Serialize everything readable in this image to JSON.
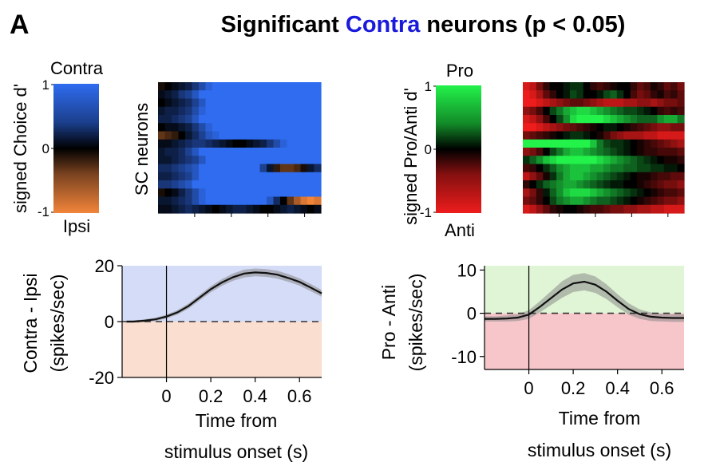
{
  "panel_letter": "A",
  "title": {
    "prefix": "Significant ",
    "highlight": "Contra",
    "suffix": " neurons (p < 0.05)",
    "highlight_color": "#1a1adc"
  },
  "colors": {
    "contra": "#2f6cf0",
    "ipsi": "#f2843a",
    "pro": "#22f24a",
    "anti": "#ee1c1c",
    "contra_fill": "#d4dcf7",
    "ipsi_fill": "#fadfd0",
    "pro_fill": "#dff5d5",
    "anti_fill": "#f7c6ca",
    "mean_line": "#111111",
    "sem_band": "#8a8a8a"
  },
  "chart_data": [
    {
      "type": "heatmap",
      "id": "choice-colorbar",
      "title": "signed Choice d'",
      "top_label": "Contra",
      "bottom_label": "Ipsi",
      "tick_labels": [
        "1",
        "0",
        "-1"
      ],
      "range": [
        -1,
        1
      ],
      "colormap": "blue-black-orange"
    },
    {
      "type": "heatmap",
      "id": "choice-heatmap",
      "ylabel": "SC neurons",
      "description_values": "rows = neurons, columns = time bins; values are signed Choice d' (mostly Contra)",
      "n_rows": 16,
      "n_cols": 24,
      "range": [
        -1,
        1
      ],
      "rows": [
        [
          -0.1,
          0.0,
          0.1,
          0.2,
          0.3,
          0.5,
          0.7,
          0.9,
          1,
          1,
          1,
          1,
          1,
          1,
          1,
          1,
          1,
          1,
          1,
          1,
          1,
          1,
          1,
          1
        ],
        [
          0.1,
          0.2,
          0.3,
          0.5,
          0.6,
          0.8,
          1,
          1,
          1,
          1,
          1,
          1,
          1,
          1,
          1,
          1,
          1,
          1,
          1,
          1,
          1,
          1,
          1,
          1
        ],
        [
          0.0,
          0.1,
          0.2,
          0.3,
          0.4,
          0.6,
          0.8,
          1,
          1,
          1,
          1,
          1,
          1,
          1,
          1,
          1,
          1,
          1,
          1,
          1,
          1,
          1,
          1,
          1
        ],
        [
          0.2,
          0.3,
          0.3,
          0.4,
          0.5,
          0.7,
          0.9,
          1,
          1,
          1,
          1,
          1,
          1,
          1,
          1,
          1,
          1,
          1,
          1,
          1,
          1,
          1,
          1,
          1
        ],
        [
          0.3,
          0.3,
          0.4,
          0.5,
          0.6,
          0.8,
          1,
          1,
          1,
          1,
          1,
          1,
          1,
          1,
          1,
          1,
          1,
          1,
          1,
          1,
          1,
          1,
          1,
          1
        ],
        [
          0.0,
          0.1,
          0.1,
          0.2,
          0.3,
          0.5,
          0.7,
          0.9,
          1,
          1,
          1,
          1,
          1,
          1,
          1,
          1,
          1,
          1,
          1,
          1,
          1,
          1,
          1,
          1
        ],
        [
          -0.4,
          -0.3,
          -0.2,
          0.0,
          0.2,
          0.4,
          0.6,
          0.8,
          0.9,
          1,
          1,
          1,
          1,
          1,
          1,
          1,
          1,
          1,
          1,
          1,
          1,
          1,
          1,
          1
        ],
        [
          0.1,
          0.1,
          0.2,
          0.3,
          0.4,
          0.5,
          0.5,
          0.4,
          0.3,
          0.2,
          0.1,
          0.0,
          0.0,
          0.1,
          0.2,
          0.3,
          0.5,
          0.7,
          0.9,
          1,
          1,
          1,
          1,
          1
        ],
        [
          0.2,
          0.3,
          0.3,
          0.4,
          0.6,
          0.8,
          1,
          1,
          1,
          1,
          1,
          1,
          1,
          1,
          1,
          1,
          1,
          1,
          1,
          1,
          1,
          1,
          1,
          1
        ],
        [
          0.2,
          0.2,
          0.3,
          0.4,
          0.5,
          0.6,
          0.8,
          1,
          1,
          1,
          1,
          1,
          1,
          1,
          1,
          1,
          1,
          1,
          1,
          1,
          1,
          1,
          1,
          1
        ],
        [
          0.4,
          0.4,
          0.5,
          0.6,
          0.7,
          0.8,
          1,
          1,
          1,
          1,
          1,
          1,
          1,
          1,
          1,
          0.6,
          0.2,
          -0.2,
          -0.4,
          -0.4,
          -0.3,
          -0.1,
          0.2,
          0.4
        ],
        [
          0.3,
          0.3,
          0.4,
          0.5,
          0.6,
          0.8,
          1,
          1,
          1,
          1,
          1,
          1,
          1,
          1,
          1,
          1,
          1,
          1,
          1,
          1,
          1,
          1,
          1,
          1
        ],
        [
          0.5,
          0.5,
          0.6,
          0.7,
          0.8,
          1,
          1,
          1,
          1,
          1,
          1,
          1,
          1,
          1,
          1,
          1,
          1,
          1,
          1,
          1,
          1,
          1,
          1,
          1
        ],
        [
          -0.1,
          0.0,
          0.1,
          0.3,
          0.5,
          0.7,
          0.9,
          1,
          1,
          1,
          1,
          1,
          1,
          1,
          1,
          1,
          1,
          1,
          1,
          1,
          1,
          1,
          1,
          1
        ],
        [
          0.2,
          0.2,
          0.3,
          0.4,
          0.5,
          0.7,
          0.9,
          1,
          1,
          1,
          1,
          1,
          1,
          1,
          1,
          1,
          0.8,
          0.4,
          0.0,
          -0.4,
          -0.7,
          -0.9,
          -1,
          -0.9
        ],
        [
          0.1,
          0.1,
          0.2,
          0.3,
          0.4,
          0.3,
          0.2,
          0.1,
          0.0,
          0.1,
          0.2,
          0.3,
          0.3,
          0.2,
          0.1,
          0.0,
          0.0,
          0.1,
          0.2,
          0.3,
          0.2,
          0.1,
          0.0,
          0.1
        ]
      ]
    },
    {
      "type": "heatmap",
      "id": "pro-anti-colorbar",
      "title": "signed Pro/Anti d'",
      "top_label": "Pro",
      "bottom_label": "Anti",
      "tick_labels": [
        "1",
        "0",
        "-1"
      ],
      "range": [
        -1,
        1
      ],
      "colormap": "green-black-red"
    },
    {
      "type": "heatmap",
      "id": "pro-anti-heatmap",
      "description_values": "rows = neurons, columns = time bins; values are signed Pro/Anti d'",
      "n_rows": 16,
      "n_cols": 24,
      "range": [
        -1,
        1
      ],
      "rows": [
        [
          -0.9,
          -0.8,
          -0.5,
          -0.2,
          0.0,
          0.0,
          0.1,
          0.2,
          0.2,
          0.0,
          -0.2,
          -0.3,
          -0.2,
          -0.1,
          0.0,
          0.0,
          -0.2,
          -0.4,
          -0.3,
          -0.1,
          -0.2,
          -0.4,
          -0.3,
          -0.5
        ],
        [
          -1,
          -0.9,
          -0.7,
          -0.4,
          -0.2,
          0.0,
          0.1,
          0.3,
          0.2,
          0.0,
          0.0,
          0.1,
          0.3,
          0.4,
          0.2,
          0.0,
          -0.3,
          -0.5,
          -0.4,
          -0.2,
          -0.1,
          -0.3,
          -0.2,
          -0.4
        ],
        [
          -1,
          -1,
          -0.9,
          -0.8,
          -0.7,
          -0.6,
          -0.5,
          -0.4,
          -0.4,
          -0.5,
          -0.6,
          -0.7,
          -0.8,
          -0.8,
          -0.8,
          -0.7,
          -0.7,
          -0.6,
          -0.6,
          -0.7,
          -0.6,
          -0.5,
          -0.5,
          -0.4
        ],
        [
          -0.6,
          -0.5,
          -0.3,
          0.0,
          0.3,
          0.5,
          0.7,
          0.8,
          0.9,
          0.9,
          0.8,
          0.7,
          0.6,
          0.5,
          0.4,
          0.3,
          0.3,
          0.2,
          0.1,
          0.0,
          -0.2,
          -0.3,
          -0.2,
          -0.3
        ],
        [
          -0.9,
          -0.8,
          -0.6,
          -0.3,
          0.0,
          0.3,
          0.6,
          0.9,
          1,
          1,
          1,
          1,
          0.9,
          0.8,
          0.7,
          0.6,
          0.5,
          0.4,
          0.4,
          0.4,
          0.6,
          0.7,
          0.7,
          0.5
        ],
        [
          -1,
          -1,
          -0.9,
          -0.8,
          -0.7,
          -0.6,
          -0.5,
          -0.4,
          -0.3,
          -0.2,
          -0.1,
          0.0,
          0.1,
          0.1,
          0.0,
          -0.1,
          -0.2,
          -0.3,
          -0.4,
          -0.5,
          -0.6,
          -0.6,
          -0.5,
          -0.5
        ],
        [
          -0.5,
          -0.4,
          -0.3,
          -0.2,
          -0.1,
          0.0,
          0.1,
          0.2,
          0.2,
          0.1,
          0.0,
          -0.1,
          -0.3,
          -0.5,
          -0.6,
          -0.7,
          -0.7,
          -0.7,
          -0.8,
          -0.8,
          -0.9,
          -0.9,
          -0.9,
          -0.9
        ],
        [
          1,
          1,
          1,
          1,
          1,
          1,
          1,
          1,
          1,
          1,
          0.8,
          0.5,
          0.3,
          0.2,
          0.2,
          0.1,
          0.0,
          -0.1,
          -0.2,
          -0.3,
          -0.4,
          -0.5,
          -0.6,
          -0.7
        ],
        [
          -0.6,
          -0.5,
          -0.3,
          0.0,
          0.3,
          0.5,
          0.7,
          0.8,
          0.8,
          0.7,
          0.6,
          0.5,
          0.4,
          0.3,
          0.2,
          0.1,
          0.0,
          -0.1,
          -0.2,
          -0.2,
          -0.3,
          -0.3,
          -0.3,
          -0.4
        ],
        [
          0.2,
          0.4,
          0.6,
          0.8,
          0.9,
          1,
          1,
          1,
          1,
          1,
          1,
          0.9,
          0.8,
          0.7,
          0.6,
          0.5,
          0.4,
          0.3,
          0.2,
          0.1,
          0.0,
          -0.1,
          -0.1,
          -0.2
        ],
        [
          -0.3,
          -0.2,
          0.0,
          0.2,
          0.4,
          0.6,
          0.7,
          0.8,
          0.8,
          0.8,
          0.7,
          0.7,
          0.6,
          0.5,
          0.5,
          0.4,
          0.4,
          0.3,
          0.3,
          0.2,
          0.2,
          0.1,
          0.1,
          0.0
        ],
        [
          -0.8,
          -0.6,
          -0.4,
          -0.1,
          0.2,
          0.5,
          0.7,
          0.8,
          0.8,
          0.7,
          0.6,
          0.5,
          0.4,
          0.3,
          0.2,
          0.1,
          0.0,
          -0.1,
          -0.1,
          -0.2,
          -0.3,
          -0.3,
          -0.4,
          -0.4
        ],
        [
          -0.2,
          0.0,
          0.2,
          0.4,
          0.5,
          0.6,
          0.7,
          0.7,
          0.6,
          0.5,
          0.4,
          0.3,
          0.2,
          0.1,
          0.1,
          0.0,
          0.0,
          -0.1,
          -0.2,
          -0.3,
          -0.4,
          -0.5,
          -0.5,
          -0.6
        ],
        [
          -0.7,
          -0.5,
          -0.2,
          0.1,
          0.4,
          0.6,
          0.8,
          0.9,
          0.9,
          0.9,
          0.8,
          0.7,
          0.6,
          0.5,
          0.4,
          0.3,
          0.2,
          0.1,
          0.0,
          -0.1,
          -0.2,
          -0.3,
          -0.3,
          -0.4
        ],
        [
          -0.5,
          -0.4,
          -0.2,
          0.0,
          0.3,
          0.5,
          0.6,
          0.7,
          0.7,
          0.6,
          0.5,
          0.4,
          0.4,
          0.3,
          0.2,
          0.1,
          0.0,
          -0.1,
          -0.2,
          -0.3,
          -0.4,
          -0.5,
          -0.5,
          -0.6
        ],
        [
          -0.9,
          -0.8,
          -0.6,
          -0.4,
          -0.2,
          -0.1,
          0.0,
          0.0,
          -0.1,
          -0.2,
          -0.3,
          -0.3,
          -0.4,
          -0.5,
          -0.5,
          -0.6,
          -0.6,
          -0.7,
          -0.7,
          -0.8,
          -0.8,
          -0.9,
          -0.9,
          -0.9
        ]
      ]
    },
    {
      "type": "line",
      "id": "contra-ipsi-plot",
      "xlabel": [
        "Time from",
        "stimulus onset (s)"
      ],
      "ylabel": [
        "Contra - Ipsi",
        "(spikes/sec)"
      ],
      "xlim": [
        -0.2,
        0.7
      ],
      "ylim": [
        -20,
        20
      ],
      "xticks": [
        0,
        0.2,
        0.4,
        0.6
      ],
      "xtick_labels": [
        "0",
        "0.2",
        "0.4",
        "0.6"
      ],
      "yticks": [
        20,
        0,
        -20
      ],
      "ytick_labels": [
        "20",
        "0",
        "-20"
      ],
      "reference_line_y": 0,
      "vertical_line_x": 0,
      "shading": {
        "positive": "contra_fill",
        "negative": "ipsi_fill"
      },
      "x": [
        -0.18,
        -0.15,
        -0.1,
        -0.05,
        0,
        0.05,
        0.1,
        0.15,
        0.2,
        0.25,
        0.3,
        0.35,
        0.4,
        0.45,
        0.5,
        0.55,
        0.6,
        0.65,
        0.7
      ],
      "y": [
        0,
        0,
        0.3,
        0.8,
        1.8,
        3.3,
        5.6,
        8.6,
        11.6,
        14.0,
        15.9,
        17.2,
        17.6,
        17.4,
        16.8,
        15.6,
        14.2,
        12.2,
        10.1
      ],
      "sem": [
        0.4,
        0.4,
        0.5,
        0.6,
        0.7,
        0.8,
        0.9,
        1.0,
        1.1,
        1.2,
        1.3,
        1.4,
        1.4,
        1.4,
        1.4,
        1.4,
        1.3,
        1.3,
        1.2
      ]
    },
    {
      "type": "line",
      "id": "pro-anti-plot",
      "xlabel": [
        "Time from",
        "stimulus onset (s)"
      ],
      "ylabel": [
        "Pro - Anti",
        "(spikes/sec)"
      ],
      "xlim": [
        -0.2,
        0.7
      ],
      "ylim": [
        -13,
        11
      ],
      "xticks": [
        0,
        0.2,
        0.4,
        0.6
      ],
      "xtick_labels": [
        "0",
        "0.2",
        "0.4",
        "0.6"
      ],
      "yticks": [
        10,
        0,
        -10
      ],
      "ytick_labels": [
        "10",
        "0",
        "-10"
      ],
      "reference_line_y": 0,
      "vertical_line_x": 0,
      "shading": {
        "positive": "pro_fill",
        "negative": "anti_fill"
      },
      "x": [
        -0.2,
        -0.15,
        -0.1,
        -0.05,
        0,
        0.05,
        0.1,
        0.15,
        0.2,
        0.25,
        0.3,
        0.35,
        0.4,
        0.45,
        0.5,
        0.55,
        0.6,
        0.65,
        0.7
      ],
      "y": [
        -1.3,
        -1.3,
        -1.2,
        -1.0,
        -0.3,
        1.5,
        3.5,
        5.5,
        6.9,
        7.3,
        6.6,
        5.0,
        2.9,
        1.0,
        -0.2,
        -0.8,
        -1.0,
        -1.1,
        -1.1
      ],
      "sem": [
        0.6,
        0.6,
        0.7,
        0.8,
        1.0,
        1.3,
        1.6,
        1.9,
        2.0,
        2.0,
        1.9,
        1.7,
        1.5,
        1.3,
        1.1,
        1.0,
        0.9,
        0.9,
        0.9
      ]
    }
  ]
}
